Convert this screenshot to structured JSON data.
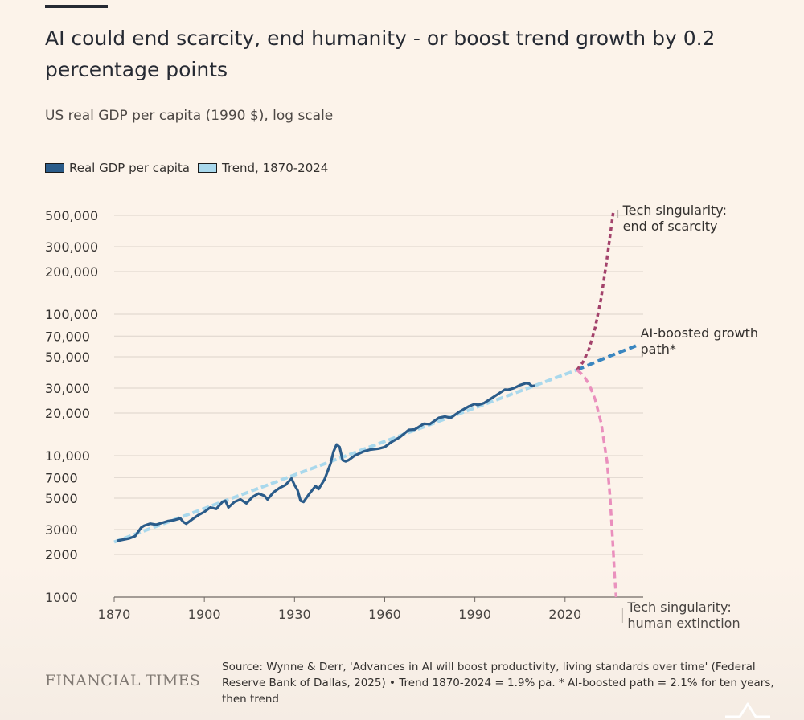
{
  "header": {
    "title": "AI could end scarcity, end humanity - or boost trend growth by 0.2 percentage points",
    "subtitle": "US real GDP per capita (1990 $), log scale"
  },
  "legend": {
    "items": [
      {
        "label": "Real GDP per capita",
        "color": "#2b5c8a"
      },
      {
        "label": "Trend, 1870-2024",
        "color": "#a9d8ec"
      }
    ]
  },
  "footer": {
    "logo": "FINANCIAL TIMES",
    "source": "Source: Wynne & Derr, 'Advances in AI will boost productivity, living standards over time' (Federal Reserve Bank of Dallas, 2025) • Trend 1870-2024 = 1.9% pa. * AI-boosted path = 2.1% for ten years, then trend"
  },
  "colors": {
    "background": "#fcf3ea",
    "gdp": "#2b5c8a",
    "trend": "#a9d8ec",
    "ai_boosted": "#3a86c0",
    "scarcity": "#a3426b",
    "extinction": "#ea8fbd",
    "grid": "#dcd3cb"
  },
  "chart_data": {
    "type": "line",
    "title": "AI could end scarcity, end humanity - or boost trend growth by 0.2 percentage points",
    "ylabel": "US real GDP per capita (1990 $), log scale",
    "xlabel": "",
    "y_scale": "log",
    "xlim": [
      1870,
      2046
    ],
    "ylim": [
      1000,
      500000
    ],
    "grid": true,
    "legend_position": "top-left",
    "y_ticks": [
      1000,
      2000,
      3000,
      5000,
      7000,
      10000,
      20000,
      30000,
      50000,
      70000,
      100000,
      200000,
      300000,
      500000
    ],
    "y_tick_labels": [
      "1000",
      "2000",
      "3000",
      "5000",
      "7000",
      "10,000",
      "20,000",
      "30,000",
      "50,000",
      "70,000",
      "100,000",
      "200,000",
      "300,000",
      "500,000"
    ],
    "x_ticks": [
      1870,
      1900,
      1930,
      1960,
      1990,
      2020
    ],
    "x_tick_labels": [
      "1870",
      "1900",
      "1930",
      "1960",
      "1990",
      "2020"
    ],
    "series": [
      {
        "name": "Real GDP per capita",
        "style": "solid",
        "x": [
          1871,
          1873,
          1875,
          1877,
          1879,
          1880,
          1882,
          1884,
          1886,
          1888,
          1890,
          1892,
          1893,
          1894,
          1896,
          1898,
          1900,
          1902,
          1904,
          1906,
          1907,
          1908,
          1910,
          1912,
          1914,
          1916,
          1918,
          1920,
          1921,
          1923,
          1925,
          1927,
          1929,
          1930,
          1931,
          1932,
          1933,
          1935,
          1937,
          1938,
          1940,
          1942,
          1943,
          1944,
          1945,
          1946,
          1947,
          1948,
          1950,
          1953,
          1955,
          1958,
          1960,
          1962,
          1965,
          1968,
          1970,
          1973,
          1975,
          1978,
          1980,
          1982,
          1985,
          1988,
          1990,
          1991,
          1993,
          1995,
          1998,
          2000,
          2001,
          2003,
          2005,
          2007,
          2008,
          2009,
          2010
        ],
        "y": [
          2500,
          2550,
          2600,
          2700,
          3100,
          3200,
          3300,
          3250,
          3350,
          3450,
          3500,
          3600,
          3400,
          3300,
          3550,
          3800,
          4000,
          4300,
          4200,
          4700,
          4800,
          4300,
          4700,
          4900,
          4600,
          5100,
          5400,
          5200,
          4900,
          5500,
          5900,
          6200,
          6900,
          6200,
          5700,
          4800,
          4700,
          5400,
          6100,
          5800,
          6800,
          8800,
          10700,
          12000,
          11500,
          9300,
          9100,
          9300,
          10000,
          10700,
          11000,
          11200,
          11500,
          12400,
          13500,
          15200,
          15300,
          16800,
          16700,
          18500,
          18900,
          18500,
          20500,
          22300,
          23200,
          22800,
          23500,
          25000,
          27500,
          29300,
          29200,
          30000,
          31500,
          32500,
          32300,
          31000,
          31200
        ]
      },
      {
        "name": "Trend, 1870-2024",
        "style": "dashed",
        "x": [
          1870,
          2024
        ],
        "y": [
          2450,
          40400
        ]
      },
      {
        "name": "AI-boosted growth path*",
        "style": "dashed",
        "x": [
          2024,
          2034,
          2044
        ],
        "y": [
          40400,
          49700,
          60200
        ]
      },
      {
        "name": "Tech singularity: end of scarcity",
        "style": "dotted",
        "x": [
          2024,
          2026,
          2028,
          2030,
          2032,
          2034,
          2036
        ],
        "y": [
          40400,
          46000,
          57000,
          80000,
          130000,
          250000,
          520000
        ]
      },
      {
        "name": "Tech singularity: human extinction",
        "style": "dashed",
        "x": [
          2024,
          2026,
          2028,
          2030,
          2032,
          2034,
          2035,
          2036,
          2036.5,
          2037
        ],
        "y": [
          40400,
          37000,
          32000,
          25000,
          17000,
          9000,
          5000,
          2200,
          1400,
          1000
        ]
      }
    ],
    "annotations": [
      {
        "text": "Tech singularity:",
        "line2": "end of scarcity",
        "x": 2036,
        "y": 520000
      },
      {
        "text": "AI-boosted growth",
        "line2": "path*",
        "x": 2044,
        "y": 60200
      },
      {
        "text": "Tech singularity:",
        "line2": "human extinction",
        "x": 2037,
        "y": 1000
      }
    ]
  }
}
